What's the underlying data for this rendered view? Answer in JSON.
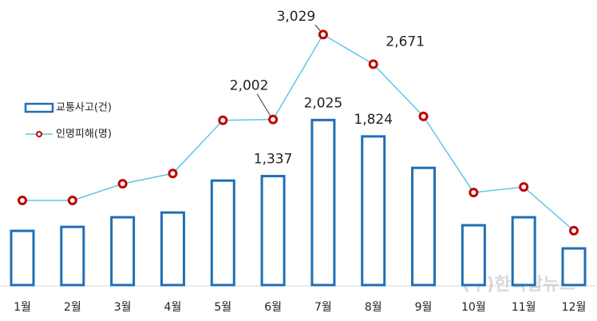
{
  "chart_data": {
    "type": "bar-line",
    "categories": [
      "1월",
      "2월",
      "3월",
      "4월",
      "5월",
      "6월",
      "7월",
      "8월",
      "9월",
      "10월",
      "11월",
      "12월"
    ],
    "series": [
      {
        "name": "교통사고(건)",
        "type": "bar",
        "color": "#1f6fb5",
        "values": [
          665,
          714,
          832,
          890,
          1282,
          1337,
          2025,
          1824,
          1438,
          734,
          832,
          450
        ],
        "value_labels": [
          null,
          null,
          null,
          null,
          null,
          "1,337",
          "2,025",
          "1,824",
          null,
          null,
          null,
          null
        ]
      },
      {
        "name": "인명피해(명)",
        "type": "line",
        "axis": "y2",
        "color": "#5bc8e8",
        "marker_color": "#c00000",
        "values": [
          1023,
          1023,
          1225,
          1349,
          1992,
          2002,
          3029,
          2671,
          2039,
          1119,
          1186,
          658
        ],
        "value_labels": [
          null,
          null,
          null,
          null,
          null,
          "2,002",
          "3,029",
          "2,671",
          null,
          null,
          null,
          null
        ]
      }
    ],
    "ylim": [
      0,
      3400
    ],
    "y2lim": [
      0,
      3350
    ],
    "legend": "left",
    "watermark": "(주)한국탑뉴스"
  }
}
